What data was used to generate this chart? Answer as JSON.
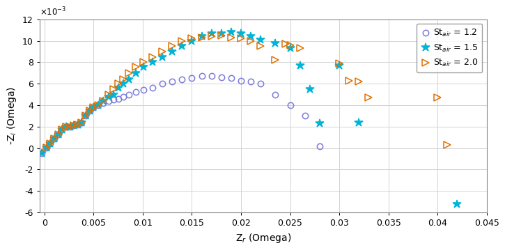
{
  "title": "",
  "xlabel": "Z$_r$ (Omega)",
  "ylabel": "-Z$_i$ (Omega)",
  "xlim": [
    -0.0005,
    0.045
  ],
  "ylim": [
    -0.006,
    0.012
  ],
  "ytick_scale": 0.001,
  "grid": true,
  "legend_loc": "upper right",
  "bg_color": "#f2f2f2",
  "series": [
    {
      "label": "St$_{air}$ = 1.2",
      "color": "#7b7bdb",
      "marker": "o",
      "markersize": 6,
      "fillstyle": "none",
      "lw": 1.0,
      "x": [
        -0.00025,
        0.0002,
        0.0006,
        0.001,
        0.0014,
        0.0018,
        0.0022,
        0.0026,
        0.003,
        0.0034,
        0.0038,
        0.0042,
        0.0046,
        0.005,
        0.0055,
        0.006,
        0.0065,
        0.007,
        0.0075,
        0.008,
        0.0086,
        0.0093,
        0.0101,
        0.011,
        0.012,
        0.013,
        0.014,
        0.015,
        0.016,
        0.017,
        0.018,
        0.019,
        0.02,
        0.021,
        0.022,
        0.0235,
        0.025,
        0.0265,
        0.028
      ],
      "y": [
        -0.00045,
        5e-05,
        0.0004,
        0.0009,
        0.0013,
        0.0017,
        0.002,
        0.002,
        0.0021,
        0.0022,
        0.0024,
        0.003,
        0.0035,
        0.0038,
        0.004,
        0.0042,
        0.0044,
        0.0045,
        0.0046,
        0.0048,
        0.005,
        0.0052,
        0.0054,
        0.0056,
        0.006,
        0.0062,
        0.0064,
        0.0065,
        0.0067,
        0.0067,
        0.0066,
        0.0065,
        0.0063,
        0.0062,
        0.006,
        0.005,
        0.004,
        0.003,
        0.0002
      ]
    },
    {
      "label": "St$_{air}$ = 1.5",
      "color": "#00b4d8",
      "marker": "*",
      "markersize": 9,
      "fillstyle": "full",
      "lw": 1.0,
      "x": [
        -0.00025,
        0.0002,
        0.0006,
        0.001,
        0.0014,
        0.0018,
        0.0022,
        0.0026,
        0.003,
        0.0034,
        0.0038,
        0.0042,
        0.0046,
        0.005,
        0.0055,
        0.006,
        0.0065,
        0.007,
        0.0075,
        0.008,
        0.0086,
        0.0093,
        0.0101,
        0.011,
        0.012,
        0.013,
        0.014,
        0.015,
        0.016,
        0.017,
        0.018,
        0.019,
        0.02,
        0.021,
        0.022,
        0.0235,
        0.025,
        0.026,
        0.027,
        0.028,
        0.03,
        0.032,
        0.042
      ],
      "y": [
        -0.00045,
        5e-05,
        0.0004,
        0.0009,
        0.0013,
        0.0017,
        0.002,
        0.002,
        0.0021,
        0.0022,
        0.0024,
        0.003,
        0.0035,
        0.0038,
        0.004,
        0.0044,
        0.0048,
        0.005,
        0.0056,
        0.006,
        0.0064,
        0.007,
        0.0076,
        0.008,
        0.0085,
        0.009,
        0.0095,
        0.01,
        0.0104,
        0.0107,
        0.0107,
        0.0108,
        0.0107,
        0.0104,
        0.0101,
        0.0098,
        0.0093,
        0.0077,
        0.0055,
        0.0023,
        0.0077,
        0.0024,
        -0.0052
      ]
    },
    {
      "label": "St$_{air}$ = 2.0",
      "color": "#e07000",
      "marker": ">",
      "markersize": 7,
      "fillstyle": "none",
      "lw": 1.0,
      "x": [
        0.0002,
        0.0006,
        0.001,
        0.0014,
        0.0018,
        0.0022,
        0.0026,
        0.003,
        0.0034,
        0.0038,
        0.0042,
        0.0046,
        0.005,
        0.0055,
        0.006,
        0.0065,
        0.007,
        0.0075,
        0.008,
        0.0086,
        0.0093,
        0.0101,
        0.011,
        0.012,
        0.013,
        0.014,
        0.015,
        0.016,
        0.017,
        0.018,
        0.019,
        0.02,
        0.021,
        0.022,
        0.0235,
        0.0245,
        0.025,
        0.026,
        0.03,
        0.031,
        0.032,
        0.033,
        0.04,
        0.041
      ],
      "y": [
        5e-05,
        0.0004,
        0.0009,
        0.0013,
        0.0017,
        0.002,
        0.002,
        0.0021,
        0.0022,
        0.0024,
        0.003,
        0.0035,
        0.0038,
        0.004,
        0.0044,
        0.005,
        0.0055,
        0.006,
        0.0064,
        0.007,
        0.0076,
        0.008,
        0.0085,
        0.009,
        0.0095,
        0.01,
        0.0102,
        0.0103,
        0.0104,
        0.0105,
        0.0103,
        0.0102,
        0.01,
        0.0095,
        0.0082,
        0.0097,
        0.0096,
        0.0093,
        0.0079,
        0.0063,
        0.0062,
        0.0047,
        0.0047,
        0.0003
      ]
    }
  ]
}
